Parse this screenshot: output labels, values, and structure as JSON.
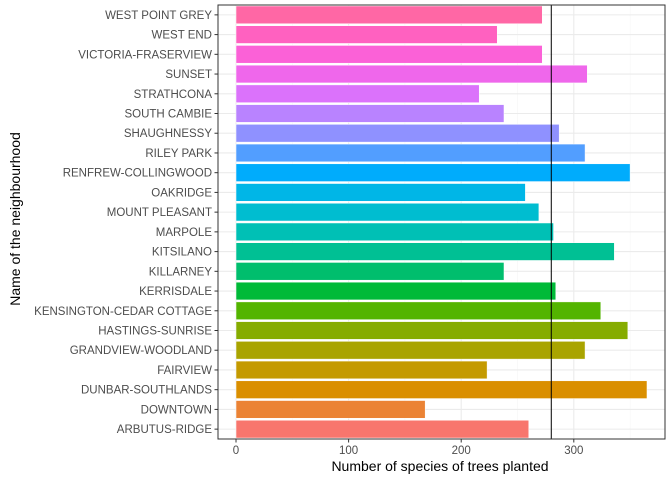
{
  "chart_data": {
    "type": "bar",
    "orientation": "horizontal",
    "title": "",
    "xlabel": "Number of species of trees planted",
    "ylabel": "Name of the neighbourhood",
    "xlim": [
      -16,
      381
    ],
    "xticks": [
      0,
      100,
      200,
      300
    ],
    "grid": true,
    "reference_line": 280,
    "categories": [
      "ARBUTUS-RIDGE",
      "DOWNTOWN",
      "DUNBAR-SOUTHLANDS",
      "FAIRVIEW",
      "GRANDVIEW-WOODLAND",
      "HASTINGS-SUNRISE",
      "KENSINGTON-CEDAR COTTAGE",
      "KERRISDALE",
      "KILLARNEY",
      "KITSILANO",
      "MARPOLE",
      "MOUNT PLEASANT",
      "OAKRIDGE",
      "RENFREW-COLLINGWOOD",
      "RILEY PARK",
      "SHAUGHNESSY",
      "SOUTH CAMBIE",
      "STRATHCONA",
      "SUNSET",
      "VICTORIA-FRASERVIEW",
      "WEST END",
      "WEST POINT GREY"
    ],
    "values": [
      260,
      168,
      365,
      223,
      310,
      348,
      324,
      284,
      238,
      336,
      282,
      269,
      257,
      350,
      310,
      287,
      238,
      216,
      312,
      272,
      232,
      272
    ],
    "colors": [
      "#F8766D",
      "#EB8335",
      "#DA8F00",
      "#C49A00",
      "#A9A400",
      "#86AC00",
      "#53B400",
      "#00BA38",
      "#00BE6D",
      "#00C094",
      "#00C0B5",
      "#00BDD0",
      "#00B6E7",
      "#00ACFC",
      "#529EFF",
      "#8F91FF",
      "#B983FF",
      "#DB72FB",
      "#EF67EB",
      "#FB61D7",
      "#FF61C0",
      "#FF67A5"
    ],
    "bar_outline": "#ffffff",
    "reference_line_color": "#000000",
    "panel_border": "#333333",
    "grid_major_color": "#ebebeb",
    "grid_minor_color": "#f5f5f5"
  }
}
